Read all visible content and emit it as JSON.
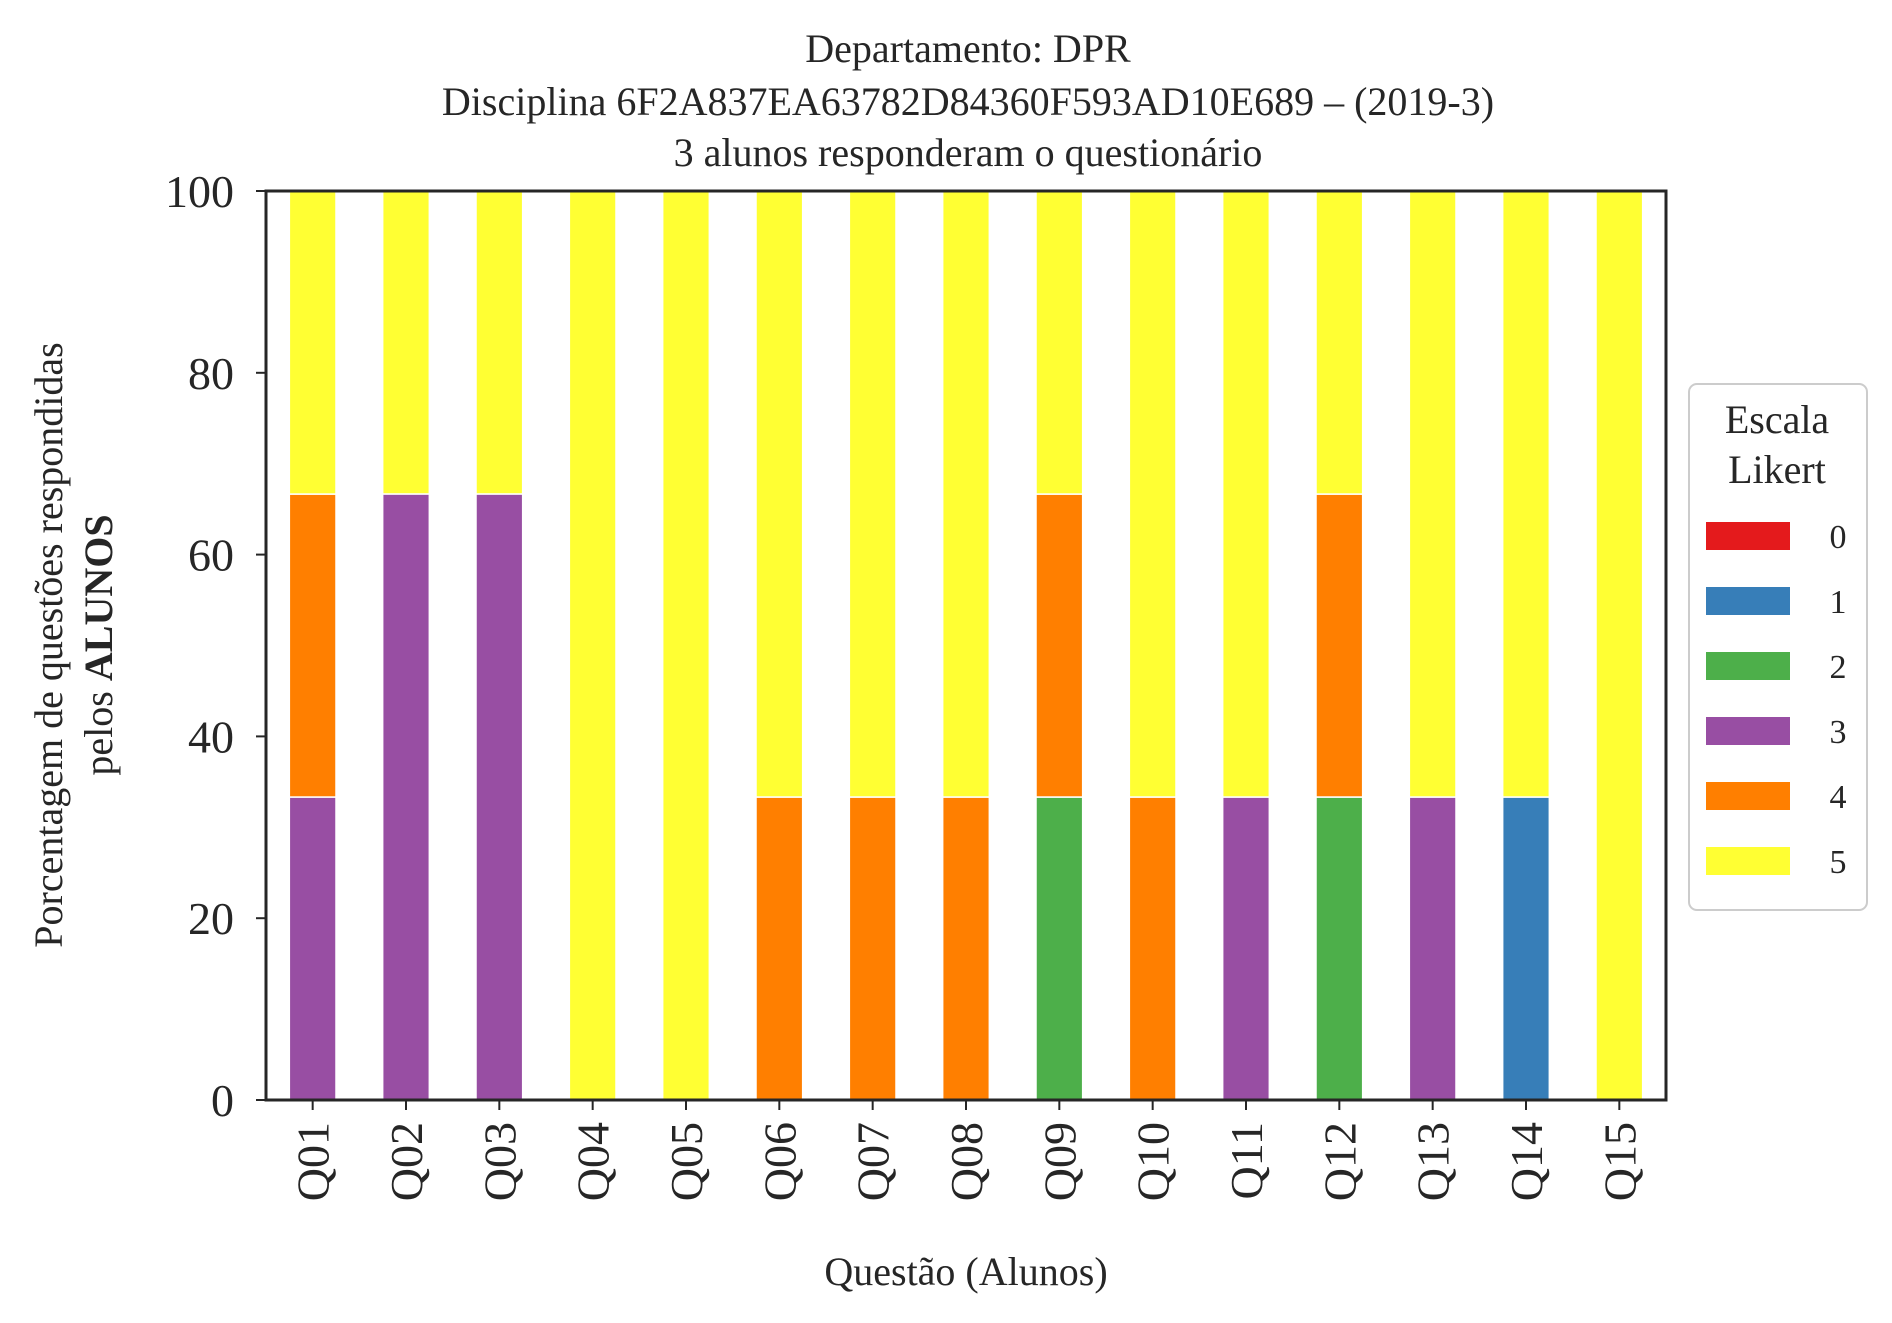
{
  "chart_data": {
    "type": "bar",
    "stacked": true,
    "title_lines": [
      "Departamento: DPR",
      "Disciplina 6F2A837EA63782D84360F593AD10E689 – (2019-3)",
      "3 alunos responderam o questionário"
    ],
    "xlabel": "Questão (Alunos)",
    "ylabel_line1": "Porcentagem de questões respondidas",
    "ylabel_line2_prefix": "pelos ",
    "ylabel_line2_bold": "ALUNOS",
    "ylim": [
      0,
      100
    ],
    "yticks": [
      0,
      20,
      40,
      60,
      80,
      100
    ],
    "grid": false,
    "categories": [
      "Q01",
      "Q02",
      "Q03",
      "Q04",
      "Q05",
      "Q06",
      "Q07",
      "Q08",
      "Q09",
      "Q10",
      "Q11",
      "Q12",
      "Q13",
      "Q14",
      "Q15"
    ],
    "series": [
      {
        "name": "0",
        "color": "#e41a1c",
        "values": [
          0,
          0,
          0,
          0,
          0,
          0,
          0,
          0,
          0,
          0,
          0,
          0,
          0,
          0,
          0
        ]
      },
      {
        "name": "1",
        "color": "#377eb8",
        "values": [
          0,
          0,
          0,
          0,
          0,
          0,
          0,
          0,
          0,
          0,
          0,
          0,
          0,
          33.33,
          0
        ]
      },
      {
        "name": "2",
        "color": "#4daf4a",
        "values": [
          0,
          0,
          0,
          0,
          0,
          0,
          0,
          0,
          33.33,
          0,
          0,
          33.33,
          0,
          0,
          0
        ]
      },
      {
        "name": "3",
        "color": "#984ea3",
        "values": [
          33.33,
          66.67,
          66.67,
          0,
          0,
          0,
          0,
          0,
          0,
          0,
          33.33,
          0,
          33.33,
          0,
          0
        ]
      },
      {
        "name": "4",
        "color": "#ff7f00",
        "values": [
          33.33,
          0,
          0,
          0,
          0,
          33.33,
          33.33,
          33.33,
          33.33,
          33.33,
          0,
          33.33,
          0,
          0,
          0
        ]
      },
      {
        "name": "5",
        "color": "#ffff33",
        "values": [
          33.33,
          33.33,
          33.33,
          100,
          100,
          66.67,
          66.67,
          66.67,
          33.33,
          66.67,
          66.67,
          33.33,
          66.67,
          66.67,
          100
        ]
      }
    ],
    "legend": {
      "title_lines": [
        "Escala",
        "Likert"
      ],
      "placement": "right"
    }
  }
}
